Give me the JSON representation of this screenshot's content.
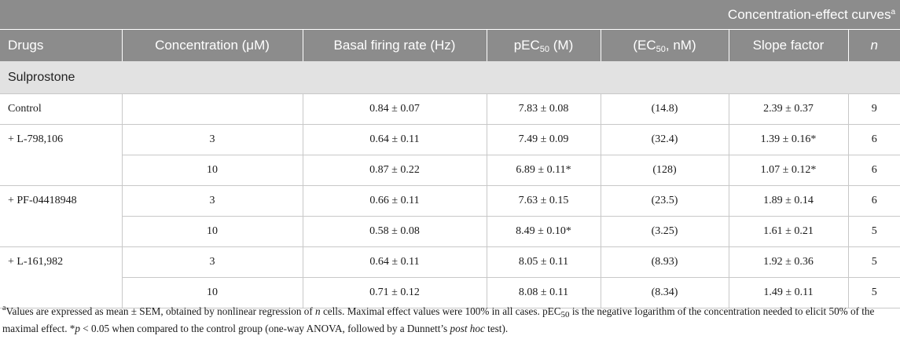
{
  "group_header": "Concentration-effect curves",
  "group_header_sup": "a",
  "columns": {
    "drugs": "Drugs",
    "concentration": "Concentration (μM)",
    "basal": "Basal firing rate (Hz)",
    "pec50_pre": "pEC",
    "pec50_sub": "50",
    "pec50_post": " (M)",
    "ec50_pre": "(EC",
    "ec50_sub": "50",
    "ec50_post": ", nM)",
    "slope": "Slope factor",
    "n": "n"
  },
  "section": "Sulprostone",
  "rows": [
    {
      "drug": "Control",
      "conc": "",
      "basal": "0.84 ± 0.07",
      "pec50": "7.83 ± 0.08",
      "ec50": "(14.8)",
      "slope": "2.39 ± 0.37",
      "n": "9"
    },
    {
      "drug": "+ L-798,106",
      "conc": "3",
      "basal": "0.64 ± 0.11",
      "pec50": "7.49 ± 0.09",
      "ec50": "(32.4)",
      "slope": "1.39 ± 0.16*",
      "n": "6"
    },
    {
      "drug": "",
      "conc": "10",
      "basal": "0.87 ± 0.22",
      "pec50": "6.89 ± 0.11*",
      "ec50": "(128)",
      "slope": "1.07 ± 0.12*",
      "n": "6"
    },
    {
      "drug": "+ PF-04418948",
      "conc": "3",
      "basal": "0.66 ± 0.11",
      "pec50": "7.63 ± 0.15",
      "ec50": "(23.5)",
      "slope": "1.89 ± 0.14",
      "n": "6"
    },
    {
      "drug": "",
      "conc": "10",
      "basal": "0.58 ± 0.08",
      "pec50": "8.49 ± 0.10*",
      "ec50": "(3.25)",
      "slope": "1.61 ± 0.21",
      "n": "5"
    },
    {
      "drug": "+ L-161,982",
      "conc": "3",
      "basal": "0.64 ± 0.11",
      "pec50": "8.05 ± 0.11",
      "ec50": "(8.93)",
      "slope": "1.92 ± 0.36",
      "n": "5"
    },
    {
      "drug": "",
      "conc": "10",
      "basal": "0.71 ± 0.12",
      "pec50": "8.08 ± 0.11",
      "ec50": "(8.34)",
      "slope": "1.49 ± 0.11",
      "n": "5"
    }
  ],
  "footnote": {
    "sup": "a",
    "t1": "Values are expressed as mean ± SEM, obtained by nonlinear regression of ",
    "n": "n",
    "t2": " cells. Maximal effect values were 100% in all cases. pEC",
    "sub": "50",
    "t3": " is the negative logarithm of the concentration needed to elicit 50% of the maximal effect. *",
    "p": "p",
    "t4": " < 0.05 when compared to the control group (one-way ANOVA, followed by a Dunnett’s ",
    "posthoc": "post hoc",
    "t5": " test)."
  }
}
